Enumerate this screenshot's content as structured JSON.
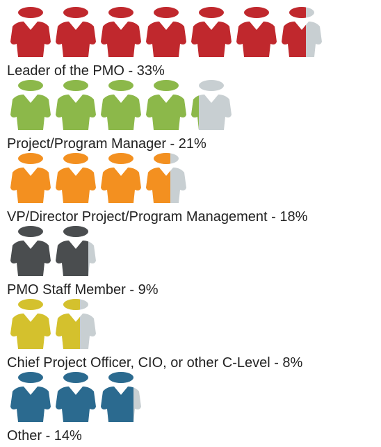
{
  "chart_data": {
    "type": "pictograph",
    "categories": [
      "Leader of the PMO - 33%",
      "Project/Program Manager - 21%",
      "VP/Director Project/Program Management - 18%",
      "PMO Staff Member - 9%",
      "Chief Project Officer, CIO, or other C-Level - 8%",
      "Other - 14%"
    ],
    "values": [
      33,
      21,
      18,
      9,
      8,
      14
    ],
    "colors": [
      "#c0282d",
      "#8cb84a",
      "#f39020",
      "#4a4d4f",
      "#d4c12d",
      "#2b6a8f"
    ],
    "empty_color": "#c8cfd2",
    "icon_value": 5
  }
}
